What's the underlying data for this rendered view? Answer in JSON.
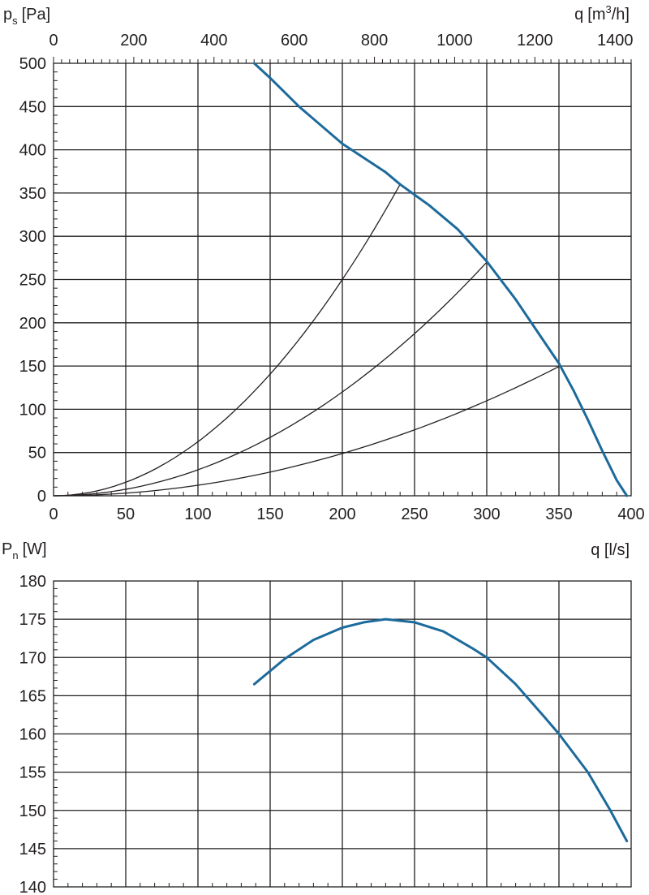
{
  "colors": {
    "curve": "#1c6a9c",
    "ink": "#231f20"
  },
  "chart_data": [
    {
      "type": "line",
      "ylabel": {
        "base": "p",
        "sub": "s",
        "unit": "[Pa]"
      },
      "xlabel_top": {
        "base": "q",
        "unit_pre": "[m",
        "sup": "3",
        "unit_post": "/h]"
      },
      "xlabel_bottom": "q [l/s]",
      "xlim": [
        0,
        400
      ],
      "ylim": [
        0,
        500
      ],
      "x_ticks": [
        0,
        50,
        100,
        150,
        200,
        250,
        300,
        350,
        400
      ],
      "y_ticks": [
        0,
        50,
        100,
        150,
        200,
        250,
        300,
        350,
        400,
        450,
        500
      ],
      "x_top_ticks": [
        0,
        200,
        400,
        600,
        800,
        1000,
        1200,
        1400
      ],
      "x_top_max": 1440,
      "grid": true,
      "series": [
        {
          "role": "fan-curve",
          "points": [
            [
              139,
              500
            ],
            [
              150,
              483
            ],
            [
              170,
              450
            ],
            [
              200,
              407
            ],
            [
              230,
              374
            ],
            [
              240,
              360
            ],
            [
              260,
              336
            ],
            [
              280,
              308
            ],
            [
              300,
              271
            ],
            [
              320,
              227
            ],
            [
              335,
              190
            ],
            [
              350,
              153
            ],
            [
              360,
              122
            ],
            [
              370,
              88
            ],
            [
              380,
              52
            ],
            [
              390,
              18
            ],
            [
              397,
              0
            ]
          ]
        },
        {
          "role": "system-curve",
          "k": 0.00625,
          "x_max": 240
        },
        {
          "role": "system-curve",
          "k": 0.003,
          "x_max": 300
        },
        {
          "role": "system-curve",
          "k": 0.00122,
          "x_max": 351
        }
      ]
    },
    {
      "type": "line",
      "ylabel": {
        "base": "P",
        "sub": "n",
        "unit": "[W]"
      },
      "xlim": [
        0,
        400
      ],
      "ylim": [
        140,
        180
      ],
      "y_ticks": [
        140,
        145,
        150,
        155,
        160,
        165,
        170,
        175,
        180
      ],
      "grid": true,
      "series": [
        {
          "role": "power-curve",
          "points": [
            [
              139,
              166.5
            ],
            [
              160,
              169.8
            ],
            [
              180,
              172.3
            ],
            [
              200,
              173.9
            ],
            [
              215,
              174.6
            ],
            [
              230,
              175.0
            ],
            [
              250,
              174.6
            ],
            [
              270,
              173.4
            ],
            [
              290,
              171.2
            ],
            [
              300,
              170.0
            ],
            [
              320,
              166.5
            ],
            [
              340,
              162.2
            ],
            [
              350,
              160.0
            ],
            [
              370,
              155.0
            ],
            [
              385,
              150.2
            ],
            [
              397,
              146.0
            ]
          ]
        }
      ]
    }
  ]
}
